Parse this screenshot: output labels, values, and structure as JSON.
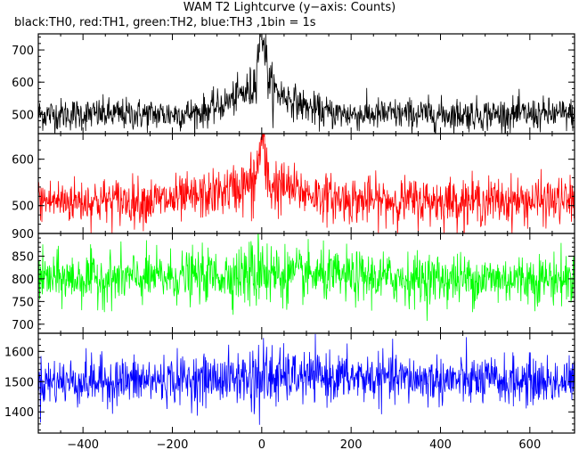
{
  "title": "WAM T2 Lightcurve (y−axis: Counts)",
  "subtitle": "black:TH0, red:TH1, green:TH2, blue:TH3 ,1bin = 1s",
  "chart_data": {
    "type": "line",
    "xlim": [
      -500,
      700
    ],
    "x_ticks": [
      -400,
      -200,
      0,
      200,
      400,
      600
    ],
    "x_tick_labels": [
      "−400",
      "−200",
      "0",
      "200",
      "400",
      "600"
    ],
    "x_step": 1,
    "panels": [
      {
        "series": "TH0",
        "color": "#000000",
        "ylim": [
          440,
          750
        ],
        "y_ticks": [
          500,
          600,
          700
        ],
        "baseline": 500,
        "sigma": 25,
        "bump": {
          "center": 0,
          "amplitude": 80,
          "width": 90
        },
        "spike": {
          "center": 0,
          "amplitude": 180,
          "width": 12
        }
      },
      {
        "series": "TH1",
        "color": "#ff0000",
        "ylim": [
          440,
          655
        ],
        "y_ticks": [
          500,
          600
        ],
        "baseline": 510,
        "sigma": 25,
        "bump": {
          "center": 0,
          "amplitude": 35,
          "width": 120
        },
        "spike": {
          "center": 0,
          "amplitude": 90,
          "width": 10
        }
      },
      {
        "series": "TH2",
        "color": "#00ff00",
        "ylim": [
          680,
          900
        ],
        "y_ticks": [
          700,
          750,
          800,
          850,
          900
        ],
        "baseline": 800,
        "sigma": 28,
        "bump": {
          "center": 0,
          "amplitude": 10,
          "width": 200
        },
        "spike": {
          "center": 0,
          "amplitude": 30,
          "width": 8
        }
      },
      {
        "series": "TH3",
        "color": "#0000ff",
        "ylim": [
          1330,
          1660
        ],
        "y_ticks": [
          1400,
          1500,
          1600
        ],
        "baseline": 1500,
        "sigma": 40,
        "bump": {
          "center": 100,
          "amplitude": 15,
          "width": 300
        },
        "spike": {
          "center": 0,
          "amplitude": 0,
          "width": 10
        }
      }
    ]
  }
}
